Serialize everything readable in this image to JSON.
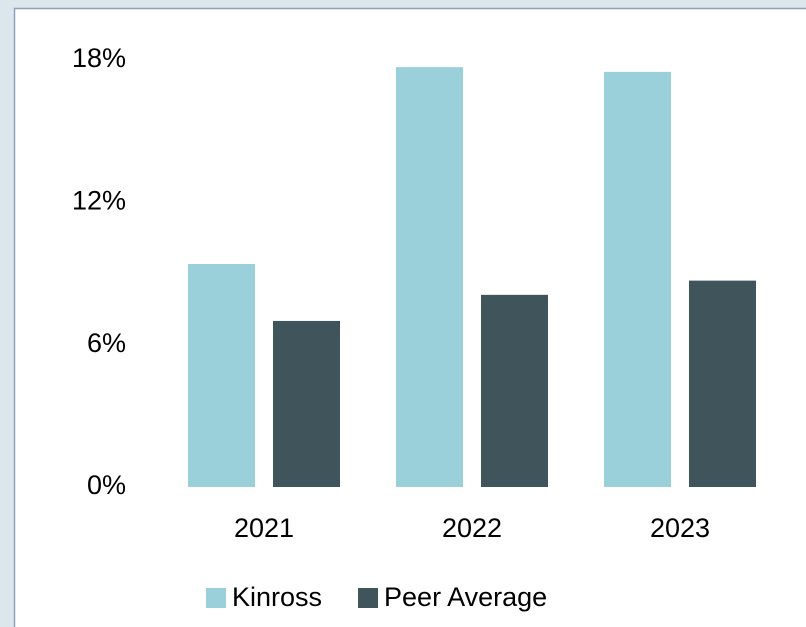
{
  "chart_data": {
    "type": "bar",
    "categories": [
      "2021",
      "2022",
      "2023"
    ],
    "series": [
      {
        "name": "Kinross",
        "color": "#9ad0da",
        "values": [
          9.4,
          17.7,
          17.5
        ]
      },
      {
        "name": "Peer Average",
        "color": "#3f555b",
        "values": [
          7.0,
          8.1,
          8.7
        ]
      }
    ],
    "ylim": [
      0,
      18
    ],
    "yticks": [
      {
        "value": 0,
        "label": "0%"
      },
      {
        "value": 6,
        "label": "6%"
      },
      {
        "value": 12,
        "label": "12%"
      },
      {
        "value": 18,
        "label": "18%"
      }
    ],
    "grid": false,
    "legend": "bottom"
  }
}
